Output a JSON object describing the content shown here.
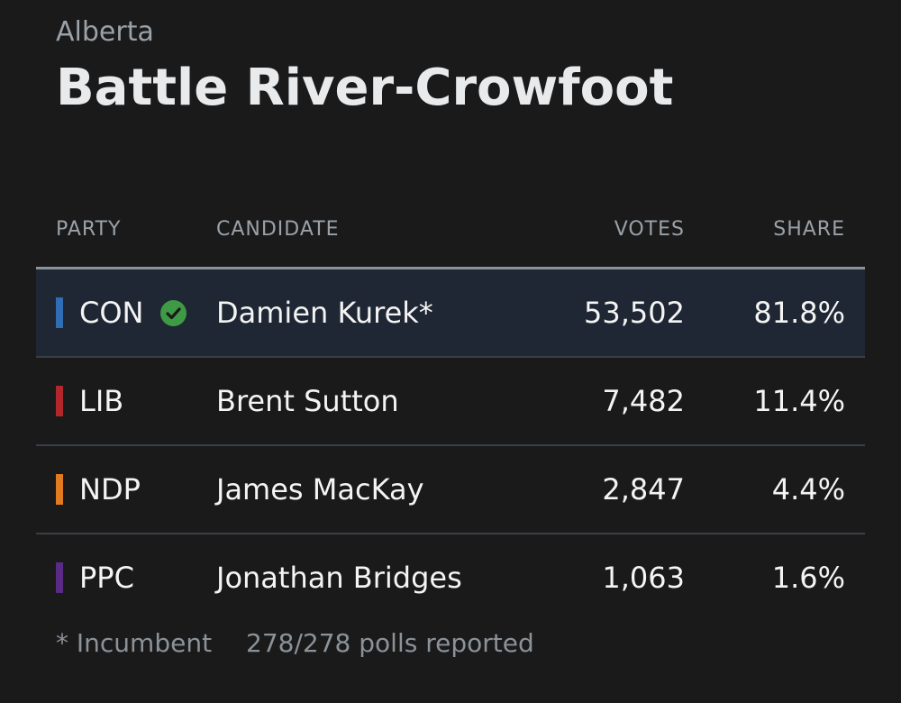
{
  "header": {
    "province": "Alberta",
    "riding": "Battle River-Crowfoot"
  },
  "table": {
    "columns": {
      "party": "PARTY",
      "candidate": "CANDIDATE",
      "votes": "VOTES",
      "share": "SHARE"
    },
    "rows": [
      {
        "party": "CON",
        "candidate": "Damien Kurek*",
        "votes": "53,502",
        "share": "81.8%",
        "color": "#2f6db5",
        "winner": true,
        "icon": "checkmark-circle-icon"
      },
      {
        "party": "LIB",
        "candidate": "Brent Sutton",
        "votes": "7,482",
        "share": "11.4%",
        "color": "#b3262c",
        "winner": false
      },
      {
        "party": "NDP",
        "candidate": "James MacKay",
        "votes": "2,847",
        "share": "4.4%",
        "color": "#e07b1f",
        "winner": false
      },
      {
        "party": "PPC",
        "candidate": "Jonathan Bridges",
        "votes": "1,063",
        "share": "1.6%",
        "color": "#5b2a86",
        "winner": false
      }
    ]
  },
  "footer": {
    "incumbent_note": "* Incumbent",
    "polls_reported": "278/278 polls reported"
  },
  "colors": {
    "background": "#1a1a1b",
    "winner_row": "#1e2733",
    "check": "#3f9a45"
  }
}
